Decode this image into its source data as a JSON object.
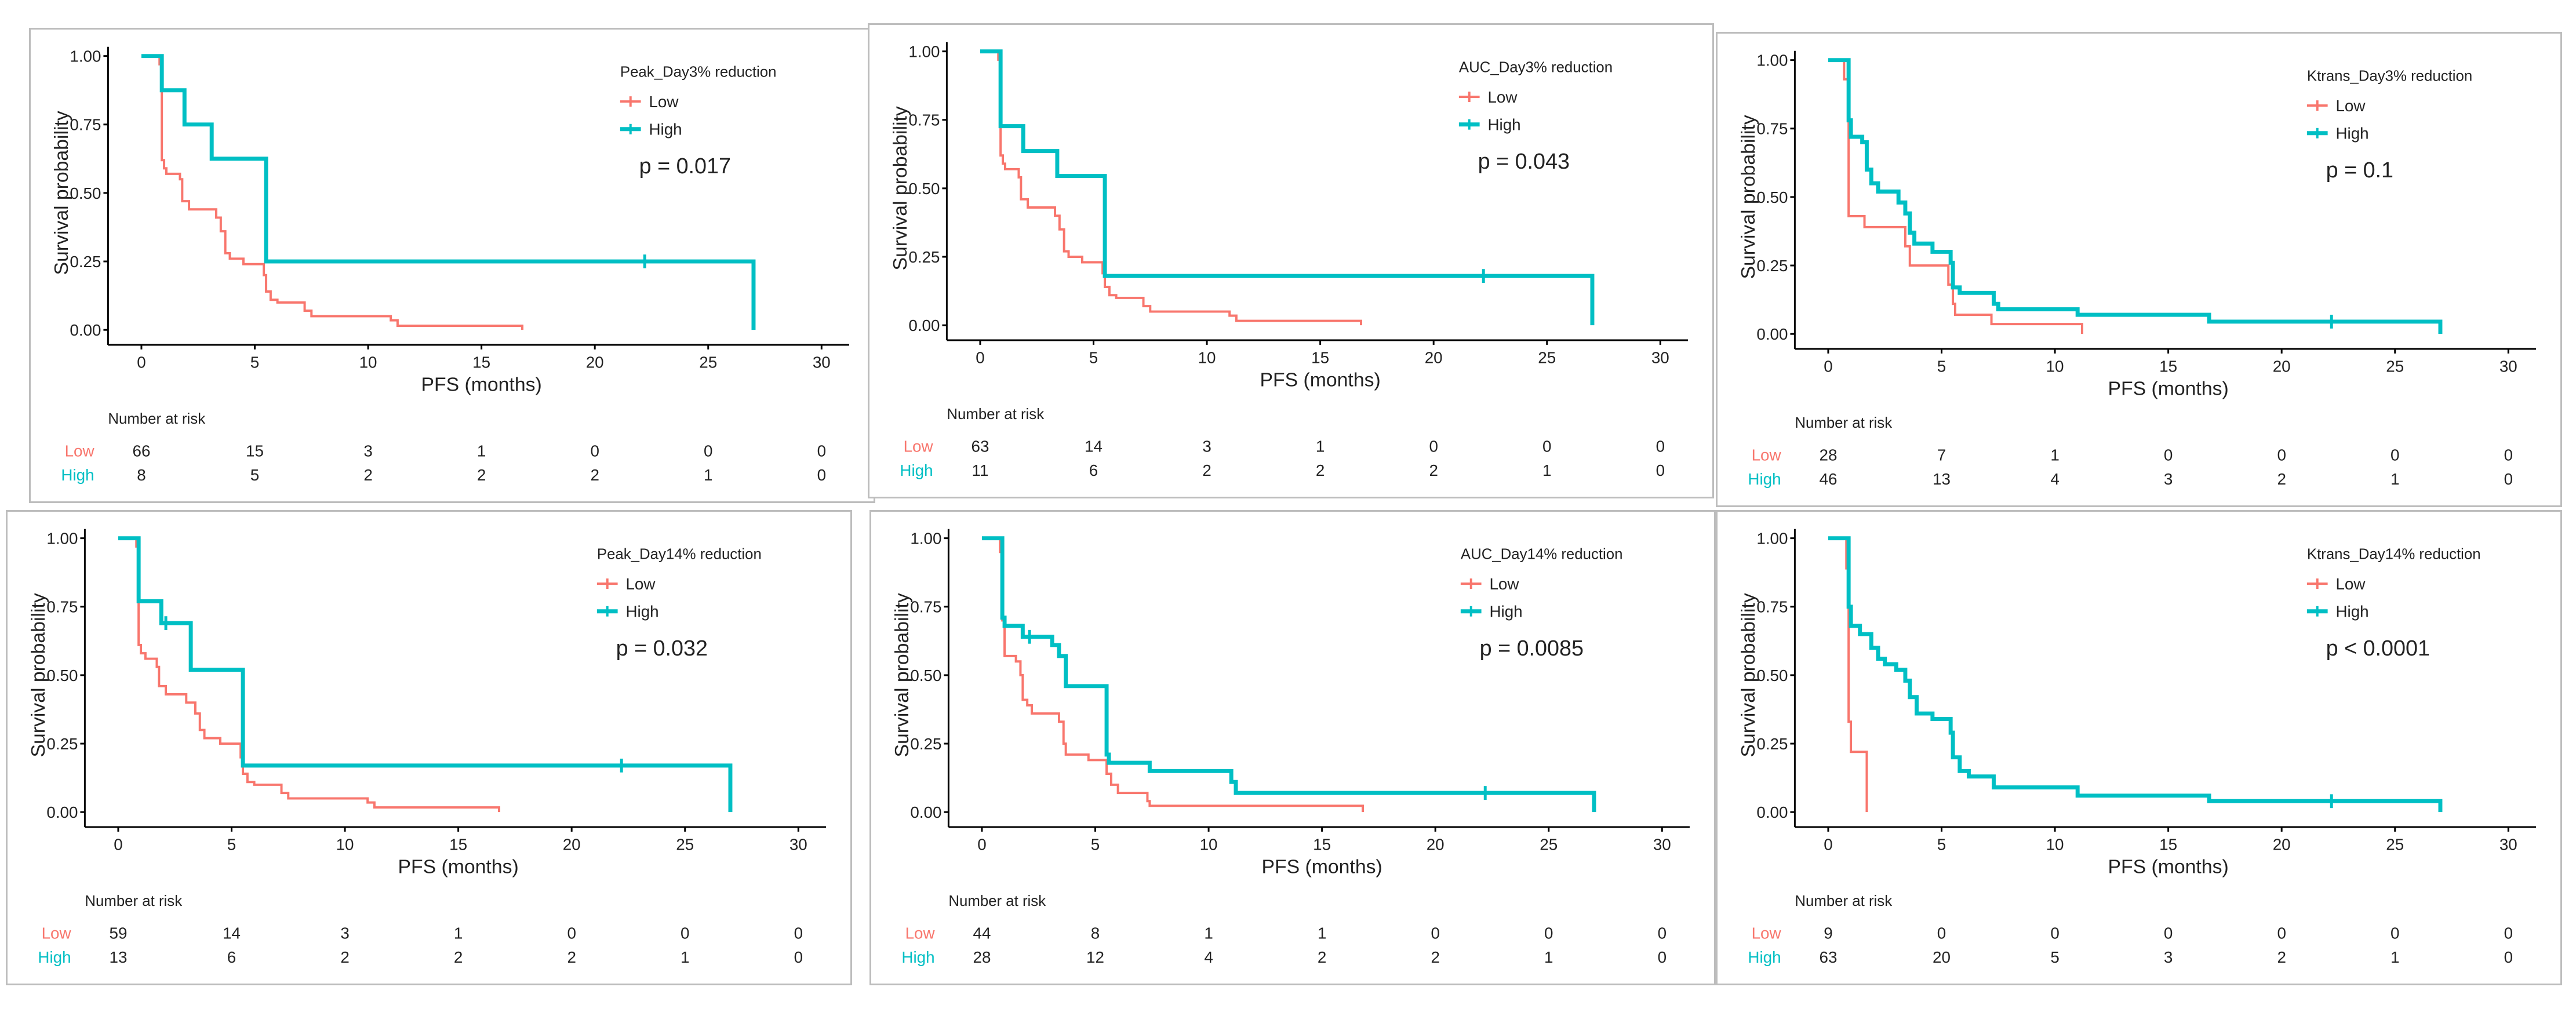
{
  "chart_data": [
    {
      "type": "line",
      "subtype": "kaplan-meier",
      "legend_title": "Peak_Day3% reduction",
      "p_value": "p = 0.017",
      "xlabel": "PFS (months)",
      "ylabel": "Survival probability",
      "xlim": [
        0,
        30
      ],
      "ylim": [
        0,
        1
      ],
      "x_ticks": [
        "0",
        "5",
        "10",
        "15",
        "20",
        "25",
        "30"
      ],
      "y_ticks": [
        "0.00",
        "0.25",
        "0.50",
        "0.75",
        "1.00"
      ],
      "risk_title": "Number at risk",
      "series": [
        {
          "name": "Low",
          "color": "#F8766D",
          "steps": [
            [
              0,
              1
            ],
            [
              0.8,
              0.97
            ],
            [
              0.9,
              0.62
            ],
            [
              1.0,
              0.59
            ],
            [
              1.1,
              0.57
            ],
            [
              1.7,
              0.55
            ],
            [
              1.8,
              0.47
            ],
            [
              2.1,
              0.44
            ],
            [
              3.3,
              0.41
            ],
            [
              3.5,
              0.36
            ],
            [
              3.7,
              0.28
            ],
            [
              3.9,
              0.26
            ],
            [
              4.5,
              0.24
            ],
            [
              5.4,
              0.2
            ],
            [
              5.5,
              0.14
            ],
            [
              5.7,
              0.11
            ],
            [
              6.0,
              0.1
            ],
            [
              7.2,
              0.07
            ],
            [
              7.5,
              0.05
            ],
            [
              11.0,
              0.035
            ],
            [
              11.3,
              0.015
            ],
            [
              16.8,
              0
            ]
          ],
          "censor": [],
          "risk": [
            66,
            15,
            3,
            1,
            0,
            0,
            0
          ]
        },
        {
          "name": "High",
          "color": "#00BFC4",
          "steps": [
            [
              0,
              1
            ],
            [
              0.9,
              0.875
            ],
            [
              1.9,
              0.75
            ],
            [
              3.1,
              0.625
            ],
            [
              5.5,
              0.25
            ],
            [
              27,
              0
            ]
          ],
          "censor": [
            22.2
          ],
          "risk": [
            8,
            5,
            2,
            2,
            2,
            1,
            0
          ]
        }
      ]
    },
    {
      "type": "line",
      "subtype": "kaplan-meier",
      "legend_title": "AUC_Day3% reduction",
      "p_value": "p = 0.043",
      "xlabel": "PFS (months)",
      "ylabel": "Survival probability",
      "xlim": [
        0,
        30
      ],
      "ylim": [
        0,
        1
      ],
      "x_ticks": [
        "0",
        "5",
        "10",
        "15",
        "20",
        "25",
        "30"
      ],
      "y_ticks": [
        "0.00",
        "0.25",
        "0.50",
        "0.75",
        "1.00"
      ],
      "risk_title": "Number at risk",
      "series": [
        {
          "name": "Low",
          "color": "#F8766D",
          "steps": [
            [
              0,
              1
            ],
            [
              0.8,
              0.97
            ],
            [
              0.9,
              0.62
            ],
            [
              1.0,
              0.59
            ],
            [
              1.1,
              0.57
            ],
            [
              1.7,
              0.54
            ],
            [
              1.8,
              0.46
            ],
            [
              2.1,
              0.43
            ],
            [
              3.3,
              0.4
            ],
            [
              3.5,
              0.35
            ],
            [
              3.7,
              0.27
            ],
            [
              3.9,
              0.25
            ],
            [
              4.5,
              0.23
            ],
            [
              5.4,
              0.19
            ],
            [
              5.5,
              0.14
            ],
            [
              5.7,
              0.11
            ],
            [
              6.0,
              0.1
            ],
            [
              7.2,
              0.07
            ],
            [
              7.5,
              0.05
            ],
            [
              11.0,
              0.035
            ],
            [
              11.3,
              0.016
            ],
            [
              16.8,
              0
            ]
          ],
          "censor": [],
          "risk": [
            63,
            14,
            3,
            1,
            0,
            0,
            0
          ]
        },
        {
          "name": "High",
          "color": "#00BFC4",
          "steps": [
            [
              0,
              1
            ],
            [
              0.9,
              0.727
            ],
            [
              1.9,
              0.636
            ],
            [
              3.4,
              0.545
            ],
            [
              5.5,
              0.18
            ],
            [
              27,
              0
            ]
          ],
          "censor": [
            22.2
          ],
          "risk": [
            11,
            6,
            2,
            2,
            2,
            1,
            0
          ]
        }
      ]
    },
    {
      "type": "line",
      "subtype": "kaplan-meier",
      "legend_title": "Ktrans_Day3% reduction",
      "p_value": "p = 0.1",
      "xlabel": "PFS (months)",
      "ylabel": "Survival probability",
      "xlim": [
        0,
        30
      ],
      "ylim": [
        0,
        1
      ],
      "x_ticks": [
        "0",
        "5",
        "10",
        "15",
        "20",
        "25",
        "30"
      ],
      "y_ticks": [
        "0.00",
        "0.25",
        "0.50",
        "0.75",
        "1.00"
      ],
      "risk_title": "Number at risk",
      "series": [
        {
          "name": "Low",
          "color": "#F8766D",
          "steps": [
            [
              0,
              1
            ],
            [
              0.7,
              0.93
            ],
            [
              0.9,
              0.43
            ],
            [
              1.6,
              0.39
            ],
            [
              3.4,
              0.32
            ],
            [
              3.6,
              0.25
            ],
            [
              5.3,
              0.18
            ],
            [
              5.5,
              0.11
            ],
            [
              5.6,
              0.07
            ],
            [
              7.2,
              0.036
            ],
            [
              11.2,
              0
            ]
          ],
          "censor": [],
          "risk": [
            28,
            7,
            1,
            0,
            0,
            0,
            0
          ]
        },
        {
          "name": "High",
          "color": "#00BFC4",
          "steps": [
            [
              0,
              1
            ],
            [
              0.9,
              0.78
            ],
            [
              1.0,
              0.72
            ],
            [
              1.5,
              0.7
            ],
            [
              1.7,
              0.6
            ],
            [
              1.9,
              0.55
            ],
            [
              2.2,
              0.52
            ],
            [
              3.1,
              0.48
            ],
            [
              3.4,
              0.44
            ],
            [
              3.6,
              0.37
            ],
            [
              3.8,
              0.33
            ],
            [
              4.6,
              0.3
            ],
            [
              5.4,
              0.26
            ],
            [
              5.5,
              0.17
            ],
            [
              5.8,
              0.15
            ],
            [
              7.3,
              0.11
            ],
            [
              7.5,
              0.09
            ],
            [
              11.0,
              0.07
            ],
            [
              16.8,
              0.045
            ],
            [
              27,
              0
            ]
          ],
          "censor": [
            22.2
          ],
          "risk": [
            46,
            13,
            4,
            3,
            2,
            1,
            0
          ]
        }
      ]
    },
    {
      "type": "line",
      "subtype": "kaplan-meier",
      "legend_title": "Peak_Day14% reduction",
      "p_value": "p = 0.032",
      "xlabel": "PFS (months)",
      "ylabel": "Survival probability",
      "xlim": [
        0,
        30
      ],
      "ylim": [
        0,
        1
      ],
      "x_ticks": [
        "0",
        "5",
        "10",
        "15",
        "20",
        "25",
        "30"
      ],
      "y_ticks": [
        "0.00",
        "0.25",
        "0.50",
        "0.75",
        "1.00"
      ],
      "risk_title": "Number at risk",
      "series": [
        {
          "name": "Low",
          "color": "#F8766D",
          "steps": [
            [
              0,
              1
            ],
            [
              0.8,
              0.97
            ],
            [
              0.9,
              0.61
            ],
            [
              1.0,
              0.58
            ],
            [
              1.2,
              0.56
            ],
            [
              1.7,
              0.53
            ],
            [
              1.8,
              0.46
            ],
            [
              2.1,
              0.43
            ],
            [
              3.0,
              0.4
            ],
            [
              3.4,
              0.36
            ],
            [
              3.6,
              0.3
            ],
            [
              3.8,
              0.27
            ],
            [
              4.5,
              0.25
            ],
            [
              5.4,
              0.2
            ],
            [
              5.5,
              0.14
            ],
            [
              5.7,
              0.11
            ],
            [
              6.0,
              0.1
            ],
            [
              7.2,
              0.07
            ],
            [
              7.5,
              0.05
            ],
            [
              11.0,
              0.035
            ],
            [
              11.3,
              0.017
            ],
            [
              16.8,
              0
            ]
          ],
          "censor": [],
          "risk": [
            59,
            14,
            3,
            1,
            0,
            0,
            0
          ]
        },
        {
          "name": "High",
          "color": "#00BFC4",
          "steps": [
            [
              0,
              1
            ],
            [
              0.9,
              0.77
            ],
            [
              1.9,
              0.69
            ],
            [
              3.2,
              0.52
            ],
            [
              5.5,
              0.17
            ],
            [
              27,
              0
            ]
          ],
          "censor": [
            2.1,
            22.2
          ],
          "risk": [
            13,
            6,
            2,
            2,
            2,
            1,
            0
          ]
        }
      ]
    },
    {
      "type": "line",
      "subtype": "kaplan-meier",
      "legend_title": "AUC_Day14% reduction",
      "p_value": "p = 0.0085",
      "xlabel": "PFS (months)",
      "ylabel": "Survival probability",
      "xlim": [
        0,
        30
      ],
      "ylim": [
        0,
        1
      ],
      "x_ticks": [
        "0",
        "5",
        "10",
        "15",
        "20",
        "25",
        "30"
      ],
      "y_ticks": [
        "0.00",
        "0.25",
        "0.50",
        "0.75",
        "1.00"
      ],
      "risk_title": "Number at risk",
      "series": [
        {
          "name": "Low",
          "color": "#F8766D",
          "steps": [
            [
              0,
              1
            ],
            [
              0.8,
              0.95
            ],
            [
              0.9,
              0.7
            ],
            [
              1.0,
              0.57
            ],
            [
              1.5,
              0.55
            ],
            [
              1.7,
              0.5
            ],
            [
              1.8,
              0.41
            ],
            [
              2.0,
              0.39
            ],
            [
              2.2,
              0.36
            ],
            [
              3.4,
              0.33
            ],
            [
              3.6,
              0.25
            ],
            [
              3.7,
              0.21
            ],
            [
              4.7,
              0.19
            ],
            [
              5.5,
              0.14
            ],
            [
              5.7,
              0.1
            ],
            [
              6.0,
              0.07
            ],
            [
              7.3,
              0.04
            ],
            [
              7.4,
              0.023
            ],
            [
              16.8,
              0
            ]
          ],
          "censor": [],
          "risk": [
            44,
            8,
            1,
            1,
            0,
            0,
            0
          ]
        },
        {
          "name": "High",
          "color": "#00BFC4",
          "steps": [
            [
              0,
              1
            ],
            [
              0.9,
              0.71
            ],
            [
              1.0,
              0.68
            ],
            [
              1.8,
              0.64
            ],
            [
              3.1,
              0.61
            ],
            [
              3.4,
              0.57
            ],
            [
              3.7,
              0.46
            ],
            [
              5.5,
              0.21
            ],
            [
              5.6,
              0.18
            ],
            [
              7.4,
              0.15
            ],
            [
              11.0,
              0.11
            ],
            [
              11.2,
              0.07
            ],
            [
              27,
              0
            ]
          ],
          "censor": [
            2.1,
            22.2
          ],
          "risk": [
            28,
            12,
            4,
            2,
            2,
            1,
            0
          ]
        }
      ]
    },
    {
      "type": "line",
      "subtype": "kaplan-meier",
      "legend_title": "Ktrans_Day14% reduction",
      "p_value": "p < 0.0001",
      "xlabel": "PFS (months)",
      "ylabel": "Survival probability",
      "xlim": [
        0,
        30
      ],
      "ylim": [
        0,
        1
      ],
      "x_ticks": [
        "0",
        "5",
        "10",
        "15",
        "20",
        "25",
        "30"
      ],
      "y_ticks": [
        "0.00",
        "0.25",
        "0.50",
        "0.75",
        "1.00"
      ],
      "risk_title": "Number at risk",
      "series": [
        {
          "name": "Low",
          "color": "#F8766D",
          "steps": [
            [
              0,
              1
            ],
            [
              0.8,
              0.89
            ],
            [
              0.9,
              0.33
            ],
            [
              1.0,
              0.22
            ],
            [
              1.7,
              0
            ]
          ],
          "censor": [],
          "risk": [
            9,
            0,
            0,
            0,
            0,
            0,
            0
          ]
        },
        {
          "name": "High",
          "color": "#00BFC4",
          "steps": [
            [
              0,
              1
            ],
            [
              0.9,
              0.75
            ],
            [
              1.0,
              0.68
            ],
            [
              1.4,
              0.65
            ],
            [
              1.9,
              0.6
            ],
            [
              2.2,
              0.56
            ],
            [
              2.5,
              0.54
            ],
            [
              3.0,
              0.52
            ],
            [
              3.4,
              0.48
            ],
            [
              3.6,
              0.42
            ],
            [
              3.9,
              0.36
            ],
            [
              4.6,
              0.34
            ],
            [
              5.4,
              0.29
            ],
            [
              5.5,
              0.2
            ],
            [
              5.8,
              0.15
            ],
            [
              6.2,
              0.13
            ],
            [
              7.3,
              0.09
            ],
            [
              11.0,
              0.06
            ],
            [
              16.8,
              0.04
            ],
            [
              27,
              0
            ]
          ],
          "censor": [
            22.2
          ],
          "risk": [
            63,
            20,
            5,
            3,
            2,
            1,
            0
          ]
        }
      ]
    }
  ]
}
